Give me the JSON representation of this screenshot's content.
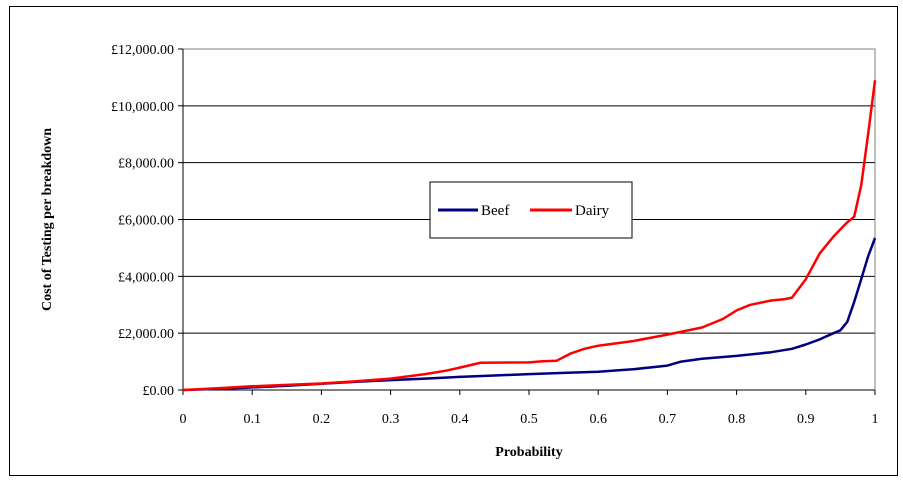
{
  "chart_data": {
    "type": "line",
    "xlabel": "Probability",
    "ylabel": "Cost of Testing per breakdown",
    "xlim": [
      0,
      1
    ],
    "ylim": [
      0,
      12000
    ],
    "grid": "horizontal",
    "legend_position": "center",
    "x_ticks": [
      "0",
      "0.1",
      "0.2",
      "0.3",
      "0.4",
      "0.5",
      "0.6",
      "0.7",
      "0.8",
      "0.9",
      "1"
    ],
    "y_ticks": [
      "£0.00",
      "£2,000.00",
      "£4,000.00",
      "£6,000.00",
      "£8,000.00",
      "£10,000.00",
      "£12,000.00"
    ],
    "series": [
      {
        "name": "Beef",
        "color": "#000080",
        "points": [
          [
            0.0,
            0
          ],
          [
            0.05,
            40
          ],
          [
            0.1,
            90
          ],
          [
            0.15,
            150
          ],
          [
            0.2,
            220
          ],
          [
            0.25,
            290
          ],
          [
            0.3,
            350
          ],
          [
            0.35,
            400
          ],
          [
            0.4,
            460
          ],
          [
            0.45,
            510
          ],
          [
            0.5,
            560
          ],
          [
            0.55,
            600
          ],
          [
            0.6,
            640
          ],
          [
            0.65,
            730
          ],
          [
            0.7,
            860
          ],
          [
            0.72,
            1000
          ],
          [
            0.75,
            1100
          ],
          [
            0.8,
            1200
          ],
          [
            0.85,
            1330
          ],
          [
            0.88,
            1450
          ],
          [
            0.9,
            1600
          ],
          [
            0.92,
            1780
          ],
          [
            0.94,
            2000
          ],
          [
            0.95,
            2100
          ],
          [
            0.96,
            2400
          ],
          [
            0.97,
            3100
          ],
          [
            0.98,
            3900
          ],
          [
            0.99,
            4700
          ],
          [
            1.0,
            5350
          ]
        ]
      },
      {
        "name": "Dairy",
        "color": "#ff0000",
        "points": [
          [
            0.0,
            0
          ],
          [
            0.05,
            60
          ],
          [
            0.1,
            130
          ],
          [
            0.15,
            180
          ],
          [
            0.2,
            230
          ],
          [
            0.25,
            310
          ],
          [
            0.3,
            400
          ],
          [
            0.35,
            560
          ],
          [
            0.38,
            680
          ],
          [
            0.4,
            790
          ],
          [
            0.42,
            900
          ],
          [
            0.43,
            960
          ],
          [
            0.5,
            970
          ],
          [
            0.52,
            1010
          ],
          [
            0.54,
            1030
          ],
          [
            0.56,
            1280
          ],
          [
            0.58,
            1450
          ],
          [
            0.6,
            1560
          ],
          [
            0.65,
            1720
          ],
          [
            0.7,
            1950
          ],
          [
            0.75,
            2200
          ],
          [
            0.78,
            2500
          ],
          [
            0.8,
            2800
          ],
          [
            0.82,
            3000
          ],
          [
            0.85,
            3150
          ],
          [
            0.87,
            3200
          ],
          [
            0.88,
            3250
          ],
          [
            0.9,
            3900
          ],
          [
            0.92,
            4800
          ],
          [
            0.94,
            5400
          ],
          [
            0.96,
            5900
          ],
          [
            0.97,
            6100
          ],
          [
            0.98,
            7200
          ],
          [
            0.99,
            9000
          ],
          [
            1.0,
            10900
          ]
        ]
      }
    ]
  }
}
